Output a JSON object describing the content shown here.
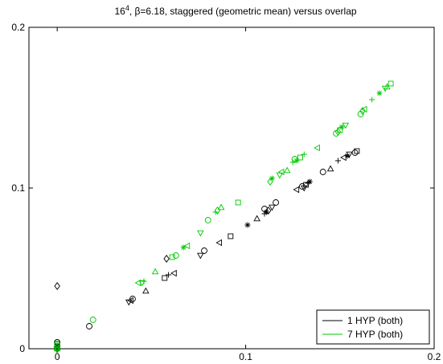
{
  "chart_data": {
    "type": "scatter",
    "title": "16^4, β=6.18, staggered (geometric mean) versus overlap",
    "title_parts": {
      "base": "16",
      "sup": "4",
      "rest": ", β=6.18, staggered (geometric mean) versus overlap"
    },
    "xlabel": "",
    "ylabel": "",
    "xlim": [
      -0.015,
      0.2
    ],
    "ylim": [
      0,
      0.2
    ],
    "x_ticks": [
      0,
      0.1,
      0.2
    ],
    "x_tick_labels": [
      "0",
      "0.1",
      "0.2"
    ],
    "y_ticks": [
      0,
      0.1,
      0.2
    ],
    "y_tick_labels": [
      "0",
      "0.1",
      "0.2"
    ],
    "grid": false,
    "legend_position": "bottom-right",
    "series": [
      {
        "name": "1 HYP (both)",
        "color": "#000000",
        "points": [
          {
            "x": 0.0,
            "y": 0.039,
            "m": "diamond"
          },
          {
            "x": 0.0,
            "y": 0.004,
            "m": "o"
          },
          {
            "x": 0.0,
            "y": 0.003,
            "m": "square"
          },
          {
            "x": 0.0,
            "y": 0.002,
            "m": "star"
          },
          {
            "x": 0.0,
            "y": 0.002,
            "m": "plus"
          },
          {
            "x": 0.0,
            "y": 0.001,
            "m": "tri-up"
          },
          {
            "x": 0.0,
            "y": 0.0,
            "m": "tri-down"
          },
          {
            "x": 0.0,
            "y": 0.001,
            "m": "tri-left"
          },
          {
            "x": 0.017,
            "y": 0.014,
            "m": "o"
          },
          {
            "x": 0.038,
            "y": 0.029,
            "m": "tri-down"
          },
          {
            "x": 0.039,
            "y": 0.03,
            "m": "tri-left"
          },
          {
            "x": 0.04,
            "y": 0.031,
            "m": "o"
          },
          {
            "x": 0.047,
            "y": 0.036,
            "m": "tri-up"
          },
          {
            "x": 0.057,
            "y": 0.044,
            "m": "square"
          },
          {
            "x": 0.059,
            "y": 0.046,
            "m": "plus"
          },
          {
            "x": 0.062,
            "y": 0.047,
            "m": "tri-left"
          },
          {
            "x": 0.058,
            "y": 0.056,
            "m": "diamond"
          },
          {
            "x": 0.076,
            "y": 0.058,
            "m": "tri-down"
          },
          {
            "x": 0.078,
            "y": 0.061,
            "m": "o"
          },
          {
            "x": 0.086,
            "y": 0.066,
            "m": "tri-left"
          },
          {
            "x": 0.092,
            "y": 0.07,
            "m": "square"
          },
          {
            "x": 0.101,
            "y": 0.077,
            "m": "star"
          },
          {
            "x": 0.106,
            "y": 0.081,
            "m": "tri-up"
          },
          {
            "x": 0.11,
            "y": 0.084,
            "m": "plus"
          },
          {
            "x": 0.111,
            "y": 0.085,
            "m": "star"
          },
          {
            "x": 0.11,
            "y": 0.087,
            "m": "o"
          },
          {
            "x": 0.112,
            "y": 0.086,
            "m": "diamond"
          },
          {
            "x": 0.114,
            "y": 0.088,
            "m": "tri-down"
          },
          {
            "x": 0.116,
            "y": 0.091,
            "m": "o"
          },
          {
            "x": 0.127,
            "y": 0.099,
            "m": "tri-left"
          },
          {
            "x": 0.13,
            "y": 0.101,
            "m": "o"
          },
          {
            "x": 0.131,
            "y": 0.1,
            "m": "tri-down"
          },
          {
            "x": 0.132,
            "y": 0.102,
            "m": "square"
          },
          {
            "x": 0.133,
            "y": 0.103,
            "m": "plus"
          },
          {
            "x": 0.134,
            "y": 0.104,
            "m": "star"
          },
          {
            "x": 0.141,
            "y": 0.11,
            "m": "o"
          },
          {
            "x": 0.145,
            "y": 0.112,
            "m": "tri-up"
          },
          {
            "x": 0.149,
            "y": 0.117,
            "m": "plus"
          },
          {
            "x": 0.152,
            "y": 0.119,
            "m": "tri-left"
          },
          {
            "x": 0.154,
            "y": 0.12,
            "m": "star"
          },
          {
            "x": 0.155,
            "y": 0.121,
            "m": "tri-down"
          },
          {
            "x": 0.158,
            "y": 0.122,
            "m": "o"
          },
          {
            "x": 0.159,
            "y": 0.123,
            "m": "square"
          }
        ]
      },
      {
        "name": "7 HYP (both)",
        "color": "#00c800",
        "points": [
          {
            "x": 0.0,
            "y": 0.003,
            "m": "o"
          },
          {
            "x": 0.0,
            "y": 0.002,
            "m": "square"
          },
          {
            "x": 0.0,
            "y": 0.001,
            "m": "diamond"
          },
          {
            "x": 0.0,
            "y": 0.0,
            "m": "tri-up"
          },
          {
            "x": 0.0,
            "y": -0.001,
            "m": "tri-down"
          },
          {
            "x": 0.019,
            "y": 0.018,
            "m": "o"
          },
          {
            "x": 0.043,
            "y": 0.041,
            "m": "tri-left"
          },
          {
            "x": 0.045,
            "y": 0.041,
            "m": "tri-down"
          },
          {
            "x": 0.046,
            "y": 0.042,
            "m": "plus"
          },
          {
            "x": 0.052,
            "y": 0.048,
            "m": "tri-up"
          },
          {
            "x": 0.061,
            "y": 0.057,
            "m": "square"
          },
          {
            "x": 0.063,
            "y": 0.058,
            "m": "o"
          },
          {
            "x": 0.067,
            "y": 0.063,
            "m": "star"
          },
          {
            "x": 0.069,
            "y": 0.064,
            "m": "tri-left"
          },
          {
            "x": 0.076,
            "y": 0.072,
            "m": "tri-down"
          },
          {
            "x": 0.08,
            "y": 0.08,
            "m": "o"
          },
          {
            "x": 0.084,
            "y": 0.085,
            "m": "plus"
          },
          {
            "x": 0.085,
            "y": 0.086,
            "m": "diamond"
          },
          {
            "x": 0.087,
            "y": 0.088,
            "m": "tri-up"
          },
          {
            "x": 0.096,
            "y": 0.091,
            "m": "square"
          },
          {
            "x": 0.113,
            "y": 0.104,
            "m": "diamond"
          },
          {
            "x": 0.114,
            "y": 0.106,
            "m": "star"
          },
          {
            "x": 0.118,
            "y": 0.108,
            "m": "tri-down"
          },
          {
            "x": 0.119,
            "y": 0.11,
            "m": "tri-left"
          },
          {
            "x": 0.122,
            "y": 0.111,
            "m": "tri-up"
          },
          {
            "x": 0.125,
            "y": 0.116,
            "m": "plus"
          },
          {
            "x": 0.126,
            "y": 0.118,
            "m": "o"
          },
          {
            "x": 0.127,
            "y": 0.117,
            "m": "star"
          },
          {
            "x": 0.129,
            "y": 0.119,
            "m": "square"
          },
          {
            "x": 0.131,
            "y": 0.121,
            "m": "plus"
          },
          {
            "x": 0.138,
            "y": 0.125,
            "m": "tri-left"
          },
          {
            "x": 0.148,
            "y": 0.134,
            "m": "o"
          },
          {
            "x": 0.149,
            "y": 0.135,
            "m": "diamond"
          },
          {
            "x": 0.15,
            "y": 0.136,
            "m": "square"
          },
          {
            "x": 0.151,
            "y": 0.138,
            "m": "star"
          },
          {
            "x": 0.153,
            "y": 0.139,
            "m": "tri-down"
          },
          {
            "x": 0.161,
            "y": 0.146,
            "m": "o"
          },
          {
            "x": 0.162,
            "y": 0.148,
            "m": "diamond"
          },
          {
            "x": 0.163,
            "y": 0.149,
            "m": "tri-left"
          },
          {
            "x": 0.167,
            "y": 0.155,
            "m": "plus"
          },
          {
            "x": 0.171,
            "y": 0.159,
            "m": "star"
          },
          {
            "x": 0.174,
            "y": 0.162,
            "m": "tri-down"
          },
          {
            "x": 0.175,
            "y": 0.163,
            "m": "tri-up"
          },
          {
            "x": 0.177,
            "y": 0.165,
            "m": "square"
          }
        ]
      }
    ]
  }
}
